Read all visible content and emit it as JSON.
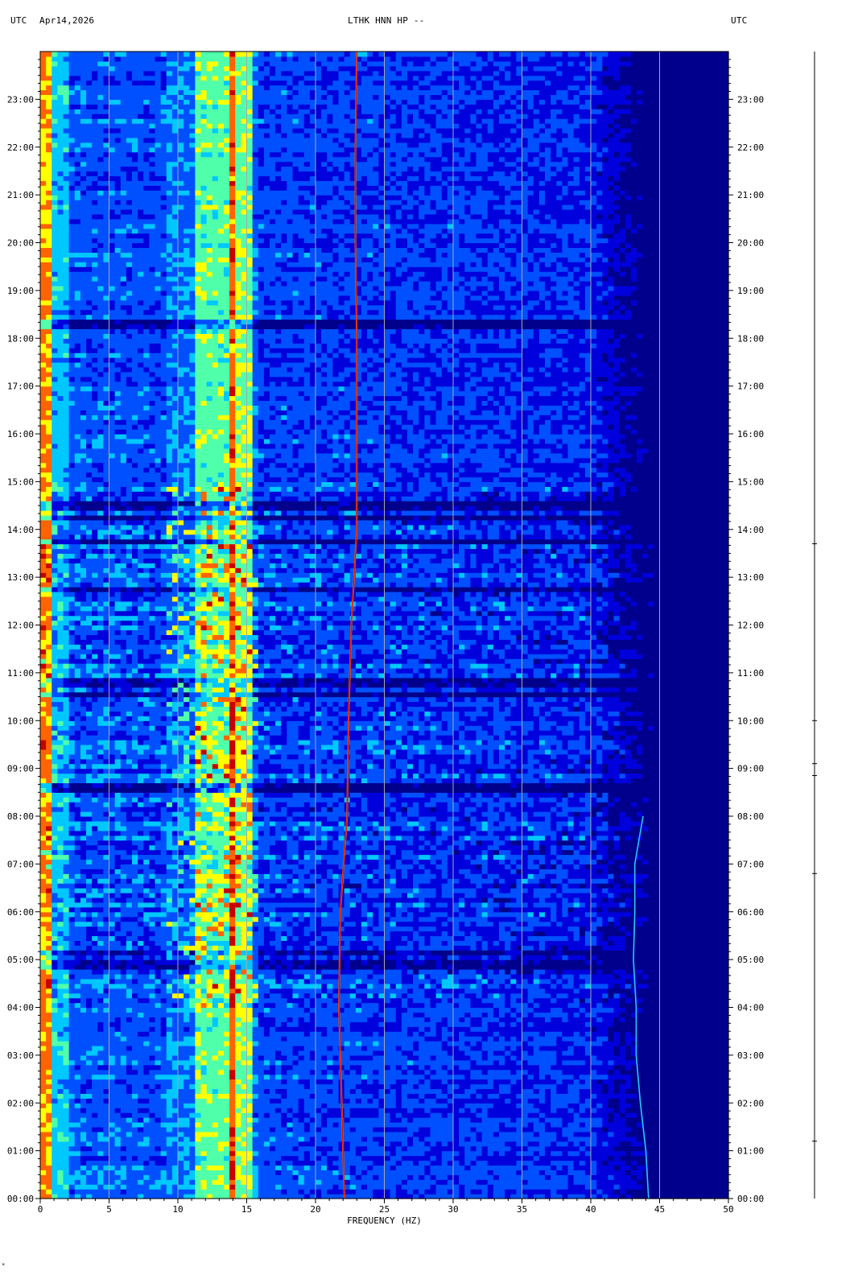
{
  "header": {
    "left_tz": "UTC",
    "date": "Apr14,2026",
    "station": "LTHK HNN HP --",
    "right_tz": "UTC"
  },
  "footer_mark": "*",
  "chart_data": {
    "type": "heatmap",
    "title": "LTHK HNN HP --",
    "xlabel": "FREQUENCY (HZ)",
    "ylabel": "UTC",
    "xlim": [
      0,
      50
    ],
    "ylim_hours": [
      0,
      24
    ],
    "x_ticks": [
      "0",
      "5",
      "10",
      "15",
      "20",
      "25",
      "30",
      "35",
      "40",
      "45",
      "50"
    ],
    "y_ticks": [
      "00:00",
      "01:00",
      "02:00",
      "03:00",
      "04:00",
      "05:00",
      "06:00",
      "07:00",
      "08:00",
      "09:00",
      "10:00",
      "11:00",
      "12:00",
      "13:00",
      "14:00",
      "15:00",
      "16:00",
      "17:00",
      "18:00",
      "19:00",
      "20:00",
      "21:00",
      "22:00",
      "23:00"
    ],
    "grid": true,
    "colormap": [
      "#00008c",
      "#0000dc",
      "#0050ff",
      "#00c8ff",
      "#50ffaa",
      "#ffff00",
      "#ff6400",
      "#c80000"
    ],
    "background_color": "#00008c",
    "rolloff_hz": 44.5,
    "persistent_bands_hz": [
      0.4,
      12.7,
      14.6
    ],
    "drifting_tone": {
      "hours": [
        0,
        2,
        4,
        6,
        8,
        10,
        12,
        14,
        16,
        18,
        20,
        22,
        24
      ],
      "freq_hz": [
        22.1,
        21.9,
        21.7,
        21.8,
        22.3,
        22.4,
        22.6,
        23.0,
        23.0,
        23.0,
        22.9,
        22.9,
        23.0
      ]
    },
    "edge_tone": {
      "hours": [
        0,
        1,
        2,
        3,
        4,
        5,
        6,
        7,
        8
      ],
      "freq_hz": [
        44.2,
        44.0,
        43.6,
        43.3,
        43.3,
        43.1,
        43.2,
        43.2,
        43.8
      ]
    },
    "quiet_bands_hours": [
      0.0,
      4.9,
      5.15,
      8.6,
      10.55,
      10.8,
      12.75,
      13.75,
      14.25,
      14.5,
      18.3
    ]
  }
}
